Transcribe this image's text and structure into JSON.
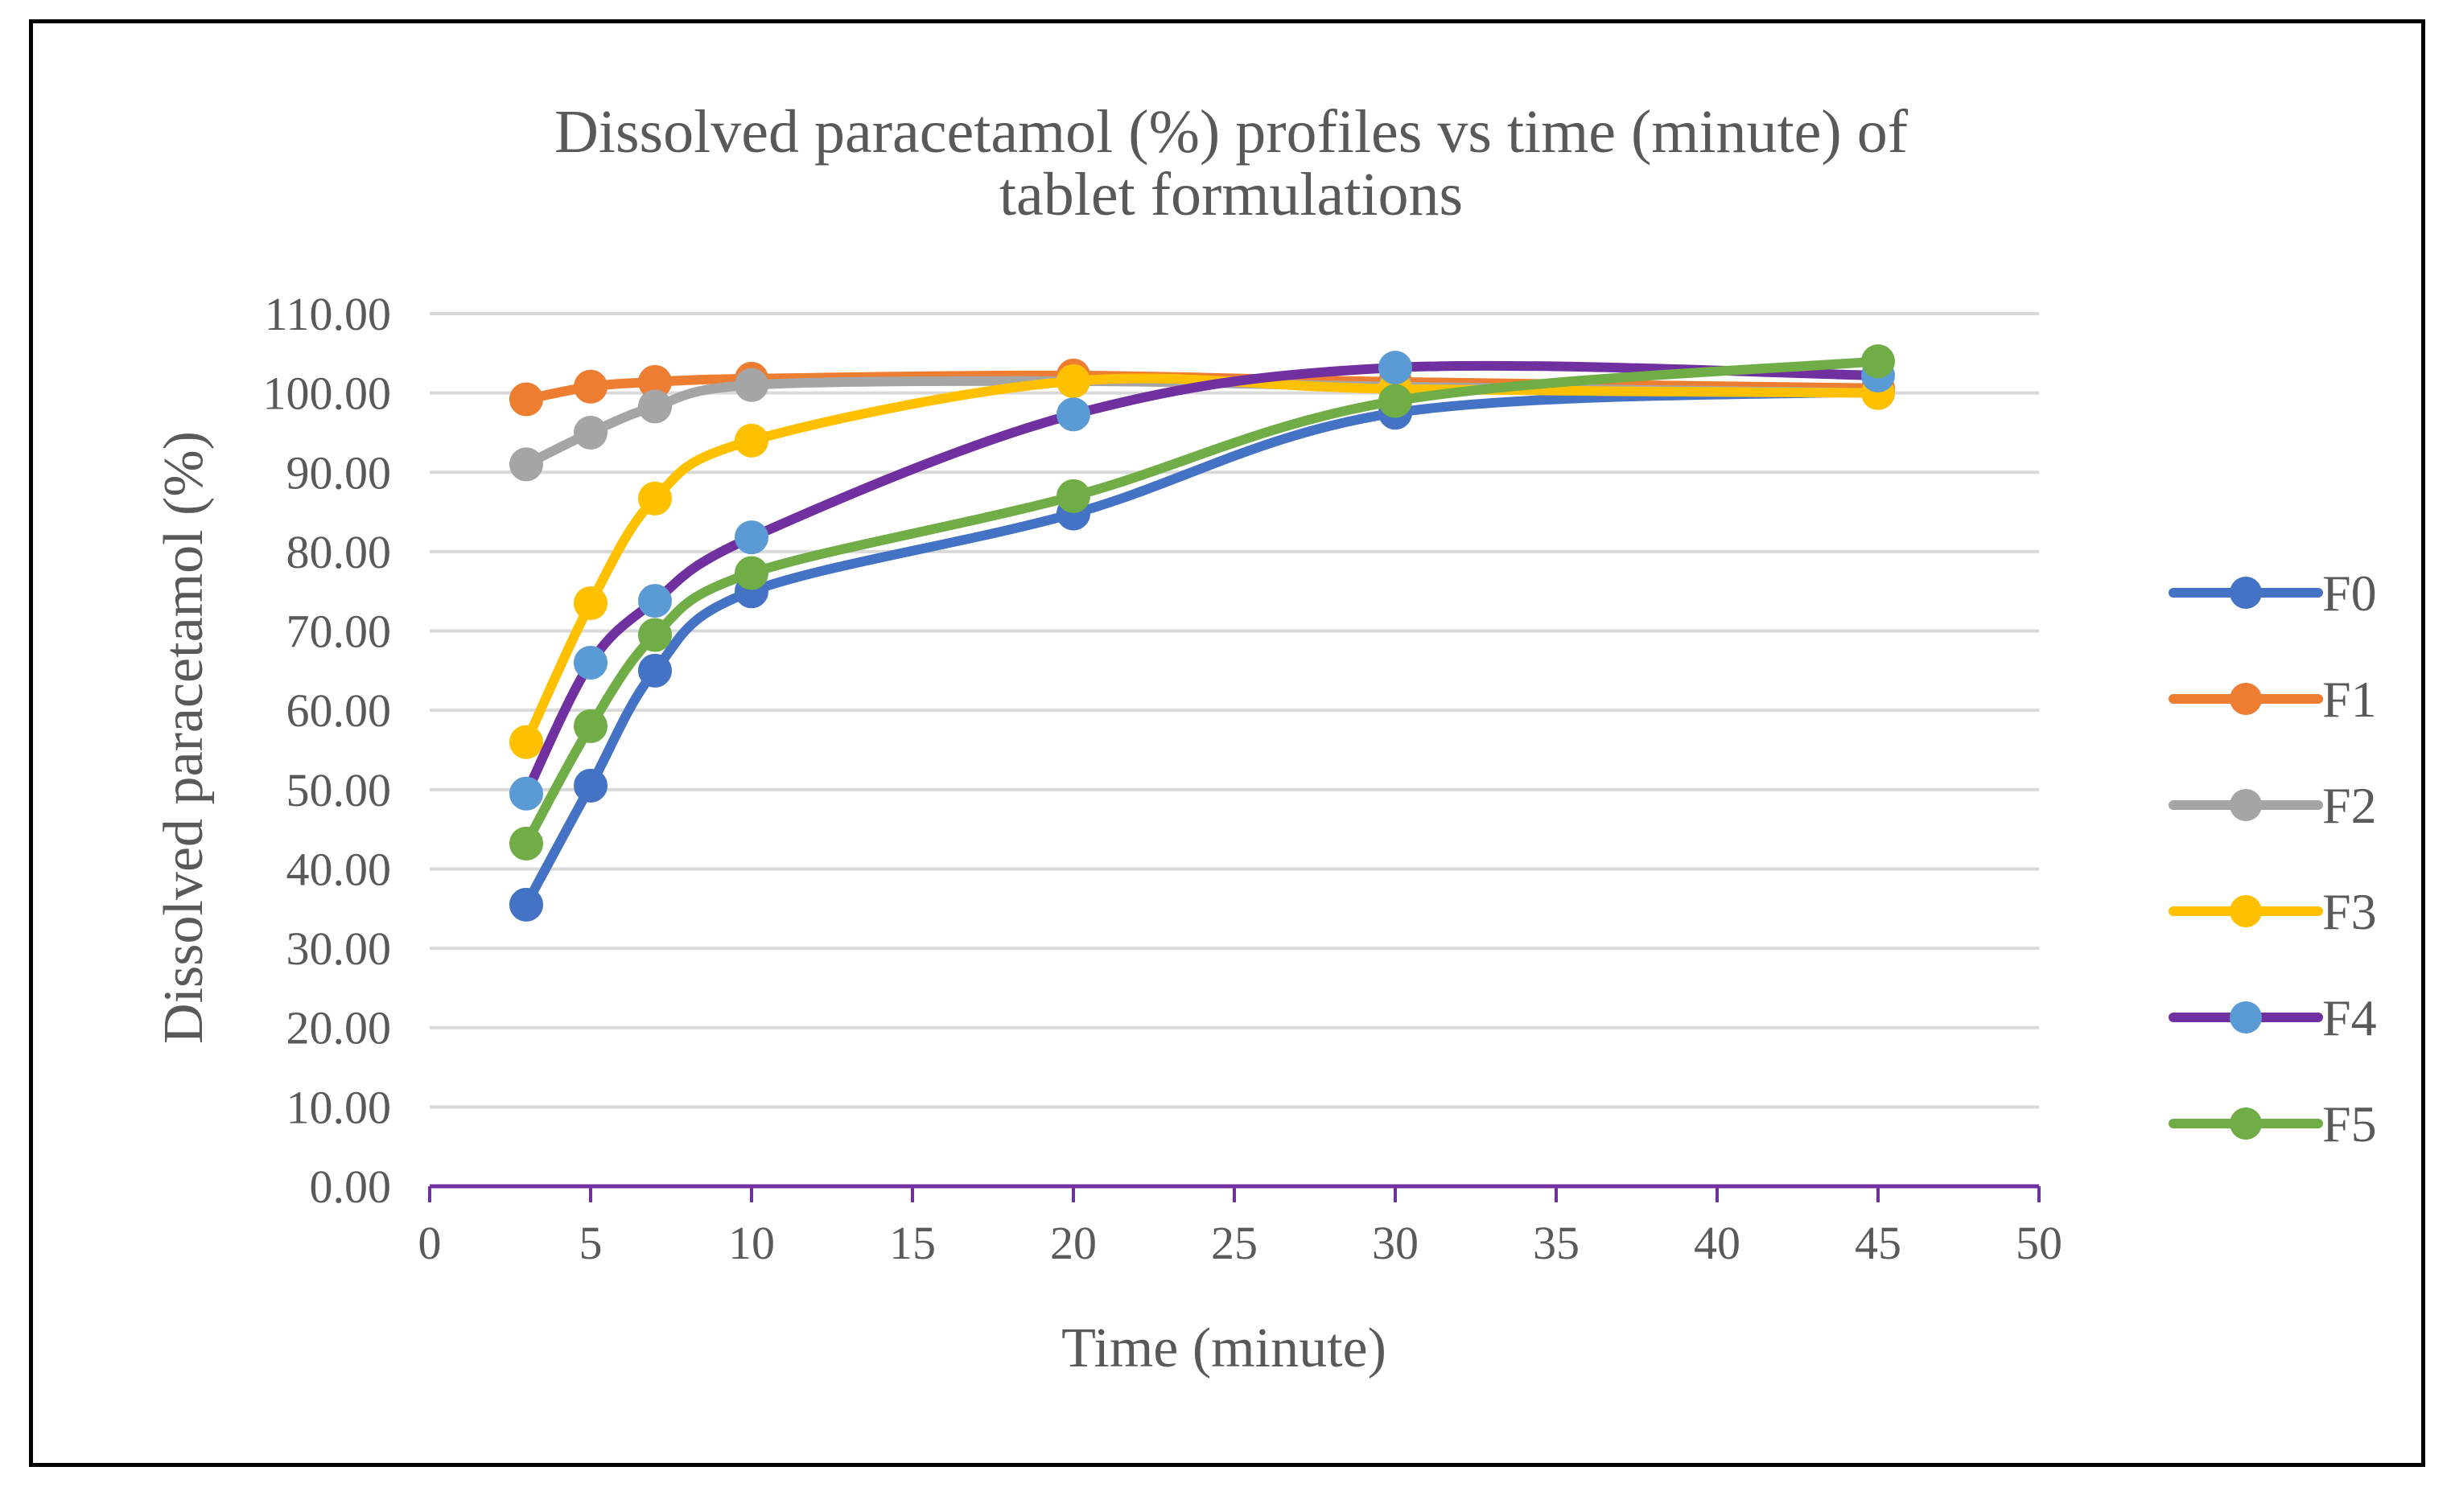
{
  "chart_data": {
    "type": "line",
    "title_lines": [
      "Dissolved paracetamol (%) profiles vs time (minute) of",
      "tablet formulations"
    ],
    "xlabel": "Time (minute)",
    "ylabel": "Dissolved  paracetamol (%)",
    "xlim": [
      0,
      50
    ],
    "ylim": [
      0,
      110
    ],
    "x_ticks": [
      "0",
      "5",
      "10",
      "15",
      "20",
      "25",
      "30",
      "35",
      "40",
      "45",
      "50"
    ],
    "y_ticks": [
      "0.00",
      "10.00",
      "20.00",
      "30.00",
      "40.00",
      "50.00",
      "60.00",
      "70.00",
      "80.00",
      "90.00",
      "100.00",
      "110.00"
    ],
    "x_tick_values": [
      0,
      5,
      10,
      15,
      20,
      25,
      30,
      35,
      40,
      45,
      50
    ],
    "y_tick_values": [
      0,
      10,
      20,
      30,
      40,
      50,
      60,
      70,
      80,
      90,
      100,
      110
    ],
    "grid": "horizontal",
    "smooth": true,
    "legend": "right",
    "x": [
      3,
      5,
      7,
      10,
      20,
      30,
      45
    ],
    "series": [
      {
        "name": "F0",
        "line_color": "#4472C4",
        "marker_color": "#4472C4",
        "values": [
          35.5,
          50.5,
          65.0,
          75.0,
          84.8,
          97.5,
          100.2
        ]
      },
      {
        "name": "F1",
        "line_color": "#ED7D31",
        "marker_color": "#ED7D31",
        "values": [
          99.2,
          100.8,
          101.4,
          101.8,
          102.2,
          101.4,
          100.6
        ]
      },
      {
        "name": "F2",
        "line_color": "#A5A5A5",
        "marker_color": "#A5A5A5",
        "values": [
          91.0,
          95.0,
          98.3,
          101.0,
          101.5,
          100.8,
          100.0
        ]
      },
      {
        "name": "F3",
        "line_color": "#FFC000",
        "marker_color": "#FFC000",
        "values": [
          56.0,
          73.5,
          86.7,
          94.0,
          101.5,
          100.5,
          100.0
        ]
      },
      {
        "name": "F4",
        "line_color": "#7030A0",
        "marker_color": "#5B9BD5",
        "values": [
          49.5,
          66.0,
          73.8,
          81.8,
          97.3,
          103.2,
          102.2
        ]
      },
      {
        "name": "F5",
        "line_color": "#70AD47",
        "marker_color": "#70AD47",
        "values": [
          43.2,
          58.0,
          69.5,
          77.3,
          87.0,
          99.0,
          104.0
        ]
      }
    ],
    "colors": {
      "grid": "#D9D9D9",
      "x_axis": "#7030A0",
      "text": "#595959"
    }
  }
}
